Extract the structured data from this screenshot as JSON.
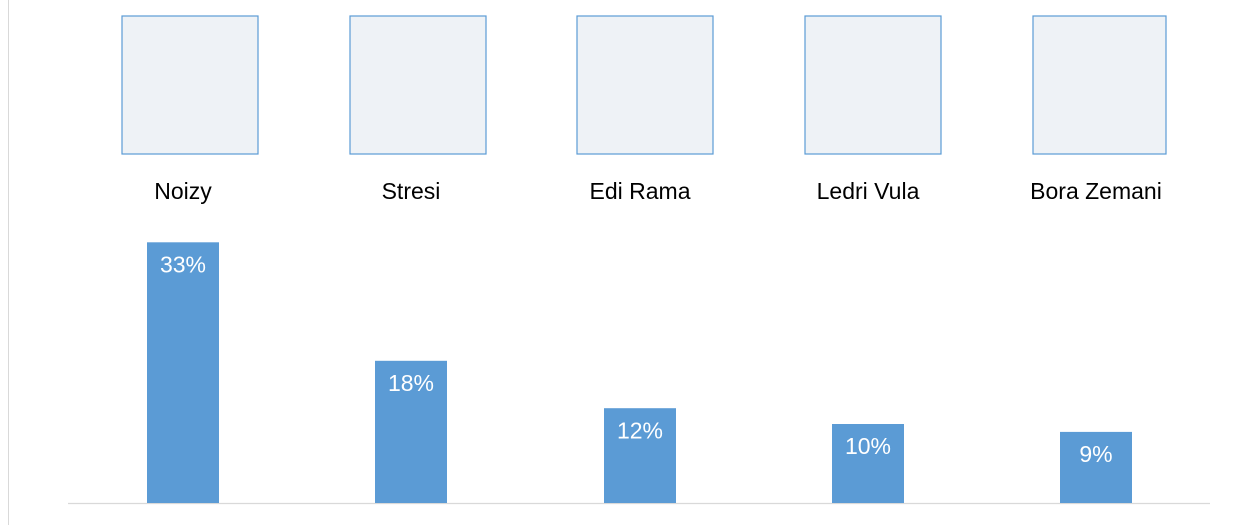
{
  "chart_data": {
    "type": "bar",
    "categories": [
      "Noizy",
      "Stresi",
      "Edi Rama",
      "Ledri Vula",
      "Bora Zemani"
    ],
    "values": [
      33,
      18,
      12,
      10,
      9
    ],
    "value_labels": [
      "33%",
      "18%",
      "12%",
      "10%",
      "9%"
    ],
    "color": "#5b9bd5"
  }
}
